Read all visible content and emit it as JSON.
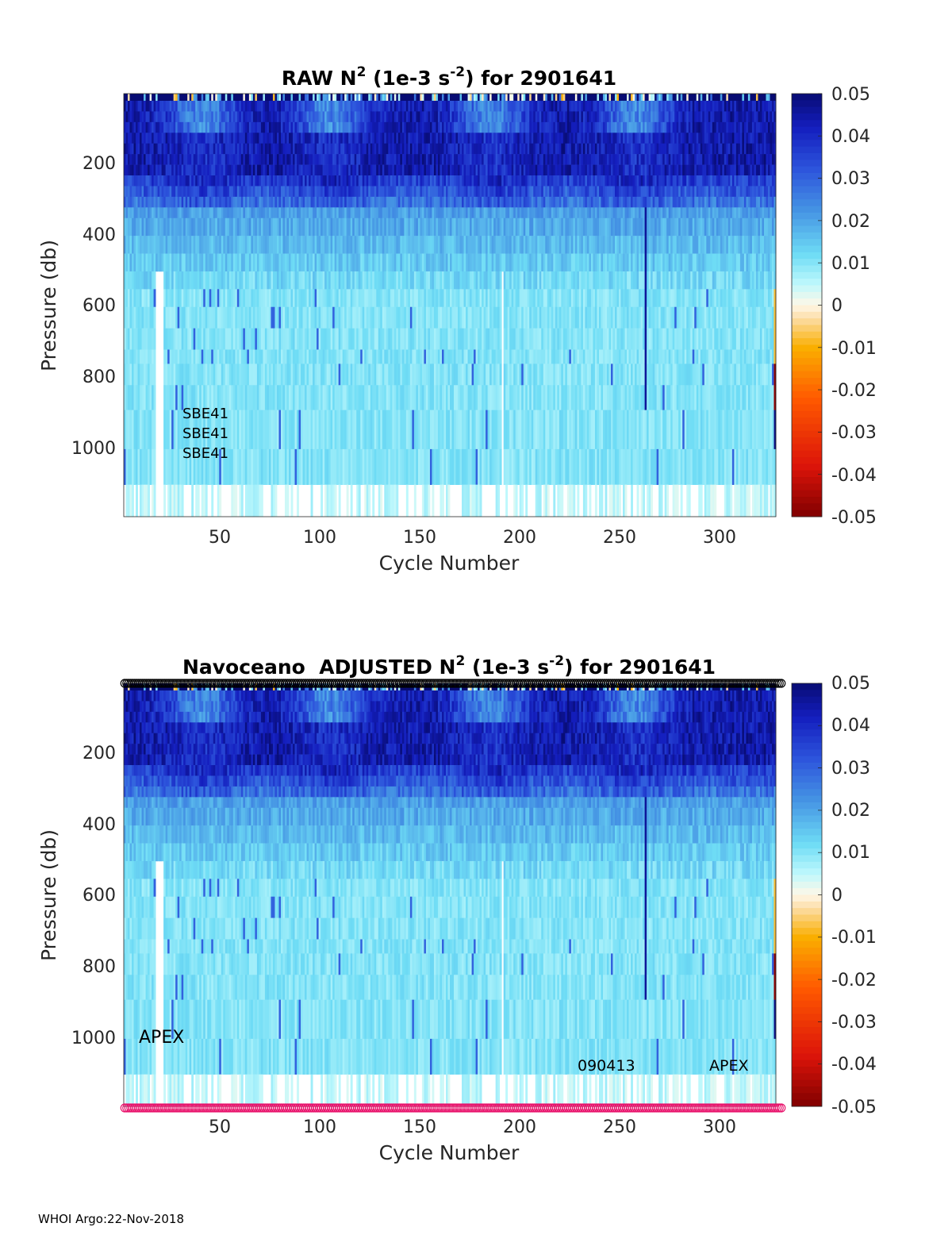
{
  "footer": "WHOI Argo:22-Nov-2018",
  "chart_data": [
    {
      "type": "heatmap",
      "title_prefix": "RAW N",
      "title_mid": " (1e-3 s",
      "title_suffix": ") for 2901641",
      "sup1": "2",
      "sup2": "-2",
      "xlabel": "Cycle Number",
      "ylabel": "Pressure (db)",
      "xlim": [
        1,
        328
      ],
      "ylim": [
        1190,
        0
      ],
      "xticks": [
        "50",
        "100",
        "150",
        "200",
        "250",
        "300"
      ],
      "yticks": [
        "200",
        "400",
        "600",
        "800",
        "1000"
      ],
      "colorbar": {
        "range": [
          -0.05,
          0.05
        ],
        "ticks": [
          "0.05",
          "0.04",
          "0.03",
          "0.02",
          "0.01",
          "0",
          "-0.01",
          "-0.02",
          "-0.03",
          "-0.04",
          "-0.05"
        ]
      },
      "annotations": [
        "SBE41",
        "SBE41",
        "SBE41"
      ]
    },
    {
      "type": "heatmap",
      "title_prefix": "Navoceano  ADJUSTED N",
      "title_mid": " (1e-3 s",
      "title_suffix": ") for 2901641",
      "sup1": "2",
      "sup2": "-2",
      "xlabel": "Cycle Number",
      "ylabel": "Pressure (db)",
      "xlim": [
        1,
        328
      ],
      "ylim": [
        1190,
        0
      ],
      "xticks": [
        "50",
        "100",
        "150",
        "200",
        "250",
        "300"
      ],
      "yticks": [
        "200",
        "400",
        "600",
        "800",
        "1000"
      ],
      "colorbar": {
        "range": [
          -0.05,
          0.05
        ],
        "ticks": [
          "0.05",
          "0.04",
          "0.03",
          "0.02",
          "0.01",
          "0",
          "-0.01",
          "-0.02",
          "-0.03",
          "-0.04",
          "-0.05"
        ]
      },
      "annotations": [
        "APEX",
        "090413",
        "APEX"
      ],
      "qc_marker_colors": [
        "#000000",
        "#e8106a"
      ]
    }
  ]
}
